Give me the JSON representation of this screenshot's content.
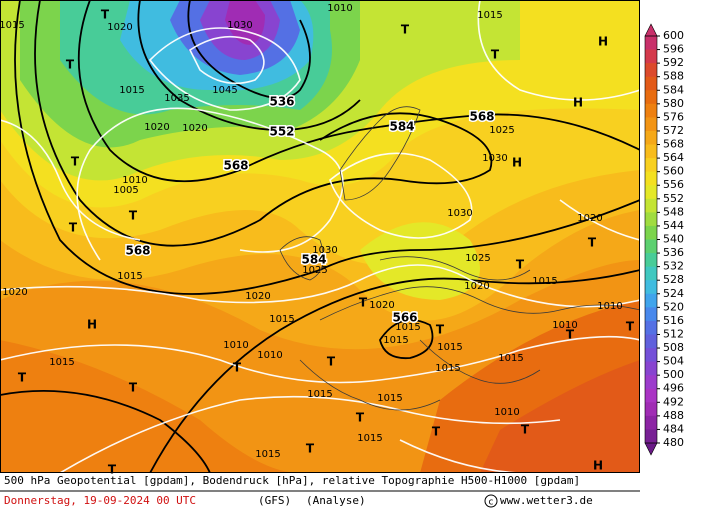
{
  "map": {
    "labels": [
      "1015",
      "1020",
      "T",
      "1030",
      "1010",
      "1015",
      "T",
      "T",
      "H",
      "T",
      "1015",
      "1035",
      "1045",
      "536",
      "1020",
      "1020",
      "552",
      "584",
      "568",
      "1025",
      "H",
      "T",
      "568",
      "1030",
      "H",
      "1010",
      "1005",
      "T",
      "T",
      "568",
      "1030",
      "1020",
      "T",
      "584",
      "1030",
      "1025",
      "1025",
      "T",
      "1015",
      "1015",
      "1020",
      "1020",
      "1020",
      "1020",
      "T",
      "566",
      "1015",
      "1010",
      "H",
      "1015",
      "1015",
      "T",
      "1010",
      "T",
      "T",
      "1015",
      "1015",
      "1010",
      "1010",
      "T",
      "1015",
      "T",
      "1015",
      "T",
      "T",
      "1015",
      "1015",
      "T",
      "1010",
      "T",
      "T",
      "1015",
      "T",
      "1015",
      "H",
      "T"
    ],
    "colorbar": {
      "ticks": [
        600,
        596,
        592,
        588,
        584,
        580,
        576,
        572,
        568,
        564,
        560,
        556,
        552,
        548,
        544,
        540,
        536,
        532,
        528,
        524,
        520,
        516,
        512,
        508,
        504,
        500,
        496,
        492,
        488,
        484,
        480
      ],
      "colors": [
        "#c8306a",
        "#d43a4c",
        "#dc4a2c",
        "#e25a18",
        "#e86c10",
        "#ee8010",
        "#f29414",
        "#f5a818",
        "#f8bc1c",
        "#f8d020",
        "#f4e020",
        "#e4e828",
        "#c4e434",
        "#a0dc40",
        "#7cd44c",
        "#5cd070",
        "#48cc98",
        "#40c8c0",
        "#40bce0",
        "#40a4ec",
        "#4888ec",
        "#5470e4",
        "#6060dc",
        "#7450d8",
        "#8844d0",
        "#9c3ccc",
        "#aa34c4",
        "#a02cb4",
        "#8c24a4",
        "#782094",
        "#6a1a86"
      ]
    },
    "footer": {
      "line1": "500 hPa Geopotential [gpdam], Bodendruck [hPa], relative Topographie H500-H1000 [gpdam]",
      "date": "Donnerstag, 19-09-2024  00 UTC",
      "model": "(GFS)",
      "run": "(Analyse)",
      "credit": "www.wetter3.de"
    }
  }
}
